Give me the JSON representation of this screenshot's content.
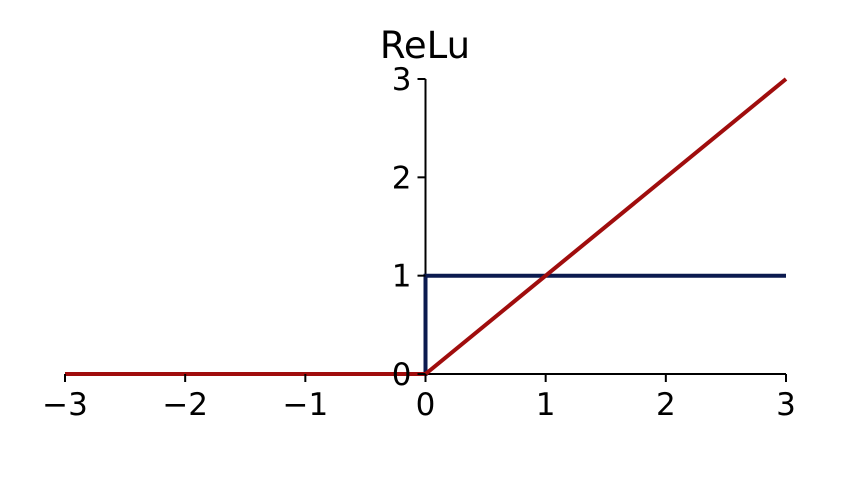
{
  "chart_data": {
    "type": "line",
    "title": "ReLu",
    "xlabel": "",
    "ylabel": "",
    "xlim": [
      -3,
      3
    ],
    "ylim": [
      0,
      3
    ],
    "x_ticks": [
      -3,
      -2,
      -1,
      0,
      1,
      2,
      3
    ],
    "x_tick_labels": [
      "−3",
      "−2",
      "−1",
      "0",
      "1",
      "2",
      "3"
    ],
    "y_ticks": [
      0,
      1,
      2,
      3
    ],
    "y_tick_labels": [
      "0",
      "1",
      "2",
      "3"
    ],
    "grid": false,
    "legend": "none",
    "series": [
      {
        "color": "#0b1a4f",
        "x": [
          -3,
          0,
          0,
          3
        ],
        "y": [
          0,
          0,
          1,
          1
        ]
      },
      {
        "color": "#a00d0d",
        "x": [
          -3,
          0,
          3
        ],
        "y": [
          0,
          0,
          3
        ]
      }
    ]
  }
}
